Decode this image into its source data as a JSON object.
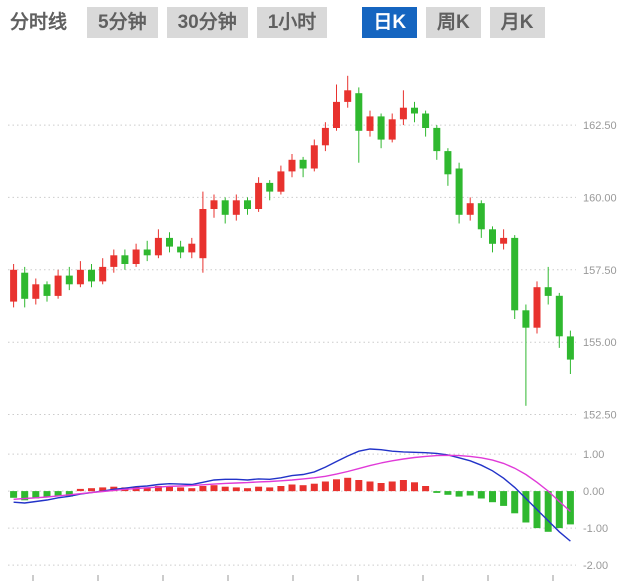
{
  "toolbar": {
    "active_bg": "#1565c0",
    "inactive_bg": "#d9d9d9",
    "tabs": [
      {
        "label": "分时线",
        "active": false
      },
      {
        "label": "5分钟",
        "active": false
      },
      {
        "label": "30分钟",
        "active": false
      },
      {
        "label": "1小时",
        "active": false
      },
      {
        "label": "日K",
        "active": true
      },
      {
        "label": "周K",
        "active": false
      },
      {
        "label": "月K",
        "active": false
      }
    ]
  },
  "chart_data": {
    "type": "candlestick",
    "title": "",
    "colors": {
      "up": "#e8322e",
      "down": "#2fb82f",
      "dif": "#2233c8",
      "dea": "#e03ad8",
      "grid": "#cccccc",
      "axis_text": "#999999"
    },
    "main": {
      "ylim": [
        152.0,
        165.3
      ],
      "ticks": [
        162.5,
        160.0,
        157.5,
        155.0,
        152.5
      ],
      "tick_labels": [
        "162.50",
        "160.00",
        "157.50",
        "155.00",
        "152.50"
      ],
      "candle_format": "[open, close, high, low]",
      "candles": [
        [
          156.4,
          157.5,
          157.7,
          156.2
        ],
        [
          157.4,
          156.5,
          157.6,
          156.2
        ],
        [
          156.5,
          157.0,
          157.2,
          156.3
        ],
        [
          157.0,
          156.6,
          157.1,
          156.4
        ],
        [
          156.6,
          157.3,
          157.5,
          156.5
        ],
        [
          157.3,
          157.0,
          157.6,
          156.8
        ],
        [
          157.0,
          157.5,
          157.8,
          156.9
        ],
        [
          157.5,
          157.1,
          157.7,
          156.9
        ],
        [
          157.1,
          157.6,
          157.9,
          157.0
        ],
        [
          157.6,
          158.0,
          158.2,
          157.4
        ],
        [
          158.0,
          157.7,
          158.2,
          157.5
        ],
        [
          157.7,
          158.2,
          158.4,
          157.6
        ],
        [
          158.2,
          158.0,
          158.5,
          157.8
        ],
        [
          158.0,
          158.6,
          158.9,
          157.9
        ],
        [
          158.6,
          158.3,
          158.8,
          158.1
        ],
        [
          158.3,
          158.1,
          158.5,
          157.9
        ],
        [
          158.1,
          158.4,
          158.6,
          157.9
        ],
        [
          157.9,
          159.6,
          160.2,
          157.4
        ],
        [
          159.6,
          159.9,
          160.1,
          159.3
        ],
        [
          159.9,
          159.4,
          160.0,
          159.1
        ],
        [
          159.4,
          159.9,
          160.1,
          159.2
        ],
        [
          159.9,
          159.6,
          160.0,
          159.4
        ],
        [
          159.6,
          160.5,
          160.7,
          159.5
        ],
        [
          160.5,
          160.2,
          160.6,
          159.9
        ],
        [
          160.2,
          160.9,
          161.1,
          160.1
        ],
        [
          160.9,
          161.3,
          161.5,
          160.7
        ],
        [
          161.3,
          161.0,
          161.4,
          160.7
        ],
        [
          161.0,
          161.8,
          162.0,
          160.9
        ],
        [
          161.8,
          162.4,
          162.6,
          161.6
        ],
        [
          162.4,
          163.3,
          163.9,
          162.3
        ],
        [
          163.3,
          163.7,
          164.2,
          163.1
        ],
        [
          163.6,
          162.3,
          163.8,
          161.2
        ],
        [
          162.3,
          162.8,
          163.0,
          162.1
        ],
        [
          162.8,
          162.0,
          162.9,
          161.7
        ],
        [
          162.0,
          162.7,
          162.9,
          161.9
        ],
        [
          162.7,
          163.1,
          163.7,
          162.5
        ],
        [
          163.1,
          162.9,
          163.3,
          162.6
        ],
        [
          162.9,
          162.4,
          163.0,
          162.1
        ],
        [
          162.4,
          161.6,
          162.5,
          161.3
        ],
        [
          161.6,
          160.8,
          161.7,
          160.4
        ],
        [
          161.0,
          159.4,
          161.2,
          159.1
        ],
        [
          159.4,
          159.8,
          160.0,
          159.2
        ],
        [
          159.8,
          158.9,
          159.9,
          158.6
        ],
        [
          158.9,
          158.4,
          159.0,
          158.1
        ],
        [
          158.4,
          158.6,
          158.9,
          158.2
        ],
        [
          158.6,
          156.1,
          158.7,
          155.8
        ],
        [
          156.1,
          155.5,
          156.3,
          152.8
        ],
        [
          155.5,
          156.9,
          157.1,
          155.3
        ],
        [
          156.9,
          156.6,
          157.6,
          156.3
        ],
        [
          156.6,
          155.2,
          156.7,
          154.8
        ],
        [
          155.2,
          154.4,
          155.4,
          153.9
        ]
      ]
    },
    "macd": {
      "ylim": [
        -2.43,
        1.68
      ],
      "ticks": [
        1.0,
        0.0,
        -1.0,
        -2.0
      ],
      "tick_labels": [
        "1.00",
        "0.00",
        "-1.00",
        "-2.00"
      ],
      "histogram": [
        -0.18,
        -0.25,
        -0.2,
        -0.15,
        -0.12,
        -0.15,
        0.06,
        0.08,
        0.1,
        0.12,
        0.1,
        0.12,
        0.1,
        0.14,
        0.12,
        0.1,
        0.08,
        0.14,
        0.16,
        0.12,
        0.1,
        0.08,
        0.12,
        0.1,
        0.14,
        0.18,
        0.16,
        0.2,
        0.26,
        0.32,
        0.36,
        0.3,
        0.26,
        0.22,
        0.26,
        0.3,
        0.24,
        0.14,
        -0.05,
        -0.1,
        -0.15,
        -0.12,
        -0.2,
        -0.3,
        -0.4,
        -0.6,
        -0.85,
        -1.0,
        -1.1,
        -1.0,
        -0.9
      ],
      "dif": [
        -0.3,
        -0.32,
        -0.28,
        -0.24,
        -0.18,
        -0.14,
        -0.08,
        -0.04,
        0.0,
        0.05,
        0.08,
        0.12,
        0.14,
        0.18,
        0.2,
        0.19,
        0.18,
        0.24,
        0.3,
        0.32,
        0.32,
        0.3,
        0.33,
        0.32,
        0.36,
        0.42,
        0.45,
        0.52,
        0.65,
        0.8,
        0.95,
        1.08,
        1.14,
        1.12,
        1.08,
        1.06,
        1.05,
        1.04,
        1.02,
        0.98,
        0.9,
        0.82,
        0.7,
        0.55,
        0.35,
        0.1,
        -0.2,
        -0.5,
        -0.8,
        -1.1,
        -1.35
      ],
      "dea": [
        -0.22,
        -0.2,
        -0.18,
        -0.16,
        -0.13,
        -0.1,
        -0.07,
        -0.04,
        -0.01,
        0.02,
        0.05,
        0.07,
        0.09,
        0.11,
        0.13,
        0.14,
        0.15,
        0.17,
        0.19,
        0.21,
        0.22,
        0.23,
        0.25,
        0.26,
        0.28,
        0.3,
        0.33,
        0.36,
        0.4,
        0.46,
        0.53,
        0.61,
        0.69,
        0.76,
        0.82,
        0.87,
        0.91,
        0.94,
        0.96,
        0.97,
        0.96,
        0.94,
        0.9,
        0.84,
        0.75,
        0.62,
        0.45,
        0.24,
        0.0,
        -0.28,
        -0.55
      ]
    }
  }
}
